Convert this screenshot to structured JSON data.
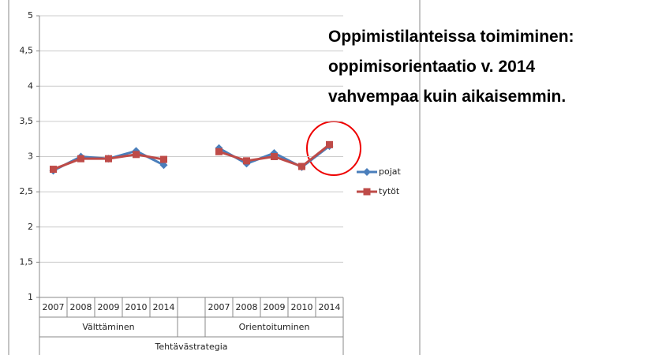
{
  "chart_data": {
    "type": "line",
    "annotation": [
      "Oppimistilanteissa toimiminen:",
      "oppimisorientaatio v. 2014",
      "vahvempaa kuin aikaisemmin."
    ],
    "categories": [
      "2007",
      "2008",
      "2009",
      "2010",
      "2014",
      null,
      "2007",
      "2008",
      "2009",
      "2010",
      "2014"
    ],
    "groups": [
      "Välttäminen",
      "Orientoituminen"
    ],
    "group_title": "Tehtävästrategia",
    "series": [
      {
        "name": "pojat",
        "color": "#4a7ebb",
        "marker": "diamond",
        "values": [
          2.8,
          3.0,
          2.97,
          3.08,
          2.88,
          null,
          3.12,
          2.9,
          3.05,
          2.85,
          3.15
        ]
      },
      {
        "name": "tytöt",
        "color": "#be4b48",
        "marker": "square",
        "values": [
          2.82,
          2.97,
          2.97,
          3.03,
          2.96,
          null,
          3.07,
          2.94,
          3.0,
          2.86,
          3.17
        ]
      }
    ],
    "ylim": [
      1,
      5
    ],
    "yticks": [
      1,
      {
        "value": 1.5,
        "label": "1,5"
      },
      2,
      {
        "value": 2.5,
        "label": "2,5"
      },
      3,
      {
        "value": 3.5,
        "label": "3,5"
      },
      4,
      {
        "value": 4.5,
        "label": "4,5"
      },
      5
    ],
    "grid": true
  }
}
